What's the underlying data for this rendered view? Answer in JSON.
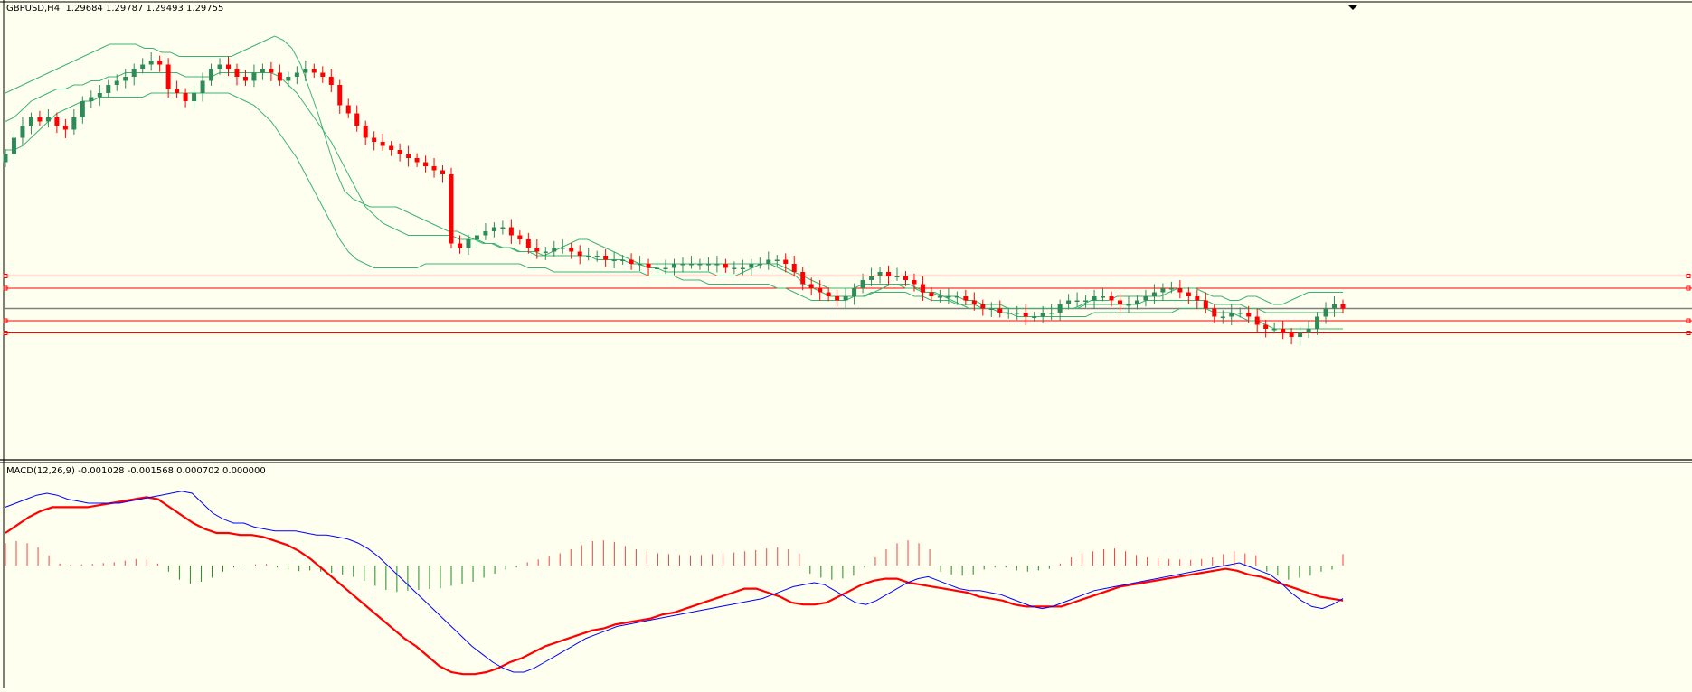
{
  "main": {
    "symbol": "GBPUSD,H4",
    "ohlc": "1.29684 1.29787 1.29493 1.29755"
  },
  "indicator": {
    "label": "MACD(12,26,9) -0.001028 -0.001568 0.000702 0.000000"
  },
  "colors": {
    "background": "#fffff0",
    "bull": "#2e8b57",
    "bear": "#ff0000",
    "band": "#3cb371",
    "hline": "#ff0000",
    "bidline": "#808080",
    "macd_line": "#0000ff",
    "signal_line": "#ff0000",
    "hist_pos": "#ff4040",
    "hist_neg": "#228b22"
  },
  "chart_data": [
    {
      "type": "candlestick",
      "symbol": "GBPUSD",
      "timeframe": "H4",
      "series": [
        {
          "name": "price",
          "values": [
            0.71,
            0.75,
            0.78,
            0.8,
            0.79,
            0.8,
            0.78,
            0.77,
            0.8,
            0.84,
            0.85,
            0.86,
            0.88,
            0.89,
            0.9,
            0.92,
            0.93,
            0.94,
            0.93,
            0.87,
            0.86,
            0.84,
            0.86,
            0.89,
            0.92,
            0.93,
            0.92,
            0.9,
            0.89,
            0.91,
            0.92,
            0.91,
            0.89,
            0.9,
            0.91,
            0.92,
            0.91,
            0.9,
            0.88,
            0.83,
            0.81,
            0.78,
            0.75,
            0.74,
            0.73,
            0.72,
            0.71,
            0.7,
            0.69,
            0.68,
            0.67,
            0.66,
            0.49,
            0.48,
            0.5,
            0.51,
            0.52,
            0.53,
            0.53,
            0.51,
            0.5,
            0.48,
            0.47,
            0.47,
            0.48,
            0.48,
            0.47,
            0.46,
            0.46,
            0.46,
            0.45,
            0.45,
            0.45,
            0.44,
            0.44,
            0.43,
            0.43,
            0.43,
            0.44,
            0.44,
            0.44,
            0.44,
            0.44,
            0.44,
            0.43,
            0.43,
            0.43,
            0.44,
            0.44,
            0.45,
            0.45,
            0.44,
            0.42,
            0.39,
            0.38,
            0.37,
            0.36,
            0.35,
            0.36,
            0.38,
            0.4,
            0.41,
            0.42,
            0.41,
            0.41,
            0.4,
            0.39,
            0.37,
            0.36,
            0.36,
            0.36,
            0.36,
            0.35,
            0.34,
            0.33,
            0.33,
            0.32,
            0.32,
            0.32,
            0.31,
            0.31,
            0.32,
            0.32,
            0.34,
            0.35,
            0.35,
            0.35,
            0.36,
            0.36,
            0.35,
            0.34,
            0.34,
            0.35,
            0.36,
            0.37,
            0.38,
            0.38,
            0.37,
            0.36,
            0.35,
            0.33,
            0.31,
            0.31,
            0.32,
            0.32,
            0.31,
            0.29,
            0.28,
            0.28,
            0.27,
            0.26,
            0.27,
            0.28,
            0.31,
            0.33,
            0.34,
            0.33
          ]
        },
        {
          "name": "bb_upper",
          "values": [
            0.86,
            0.87,
            0.88,
            0.89,
            0.9,
            0.91,
            0.92,
            0.93,
            0.94,
            0.95,
            0.96,
            0.97,
            0.98,
            0.98,
            0.98,
            0.98,
            0.97,
            0.97,
            0.96,
            0.96,
            0.95,
            0.95,
            0.95,
            0.95,
            0.95,
            0.95,
            0.95,
            0.96,
            0.97,
            0.98,
            0.99,
            1.0,
            0.99,
            0.97,
            0.93,
            0.87,
            0.81,
            0.74,
            0.67,
            0.62,
            0.6,
            0.59,
            0.58,
            0.58,
            0.58,
            0.58,
            0.57,
            0.56,
            0.55,
            0.54,
            0.53,
            0.52,
            0.52,
            0.51,
            0.5,
            0.49,
            0.49,
            0.48,
            0.48,
            0.47,
            0.47,
            0.47,
            0.46,
            0.47,
            0.48,
            0.49,
            0.5,
            0.5,
            0.49,
            0.48,
            0.47,
            0.46,
            0.45,
            0.44,
            0.43,
            0.43,
            0.42,
            0.42,
            0.42,
            0.42,
            0.42,
            0.42,
            0.41,
            0.41,
            0.41,
            0.42,
            0.43,
            0.44,
            0.44,
            0.43,
            0.42,
            0.41,
            0.39,
            0.38,
            0.37,
            0.36,
            0.36,
            0.36,
            0.36,
            0.36,
            0.37,
            0.38,
            0.39,
            0.39,
            0.39,
            0.38,
            0.37,
            0.37,
            0.36,
            0.35,
            0.34,
            0.33,
            0.33,
            0.33,
            0.33,
            0.33,
            0.33,
            0.33,
            0.33,
            0.33,
            0.33,
            0.33,
            0.33,
            0.33,
            0.34,
            0.35,
            0.35,
            0.35,
            0.36,
            0.36,
            0.36,
            0.36,
            0.36,
            0.36,
            0.37,
            0.38,
            0.38,
            0.38,
            0.37,
            0.36,
            0.36,
            0.35,
            0.35,
            0.36,
            0.36,
            0.35,
            0.34,
            0.34,
            0.35,
            0.36,
            0.37,
            0.37,
            0.37,
            0.37,
            0.37
          ]
        },
        {
          "name": "bb_middle",
          "values": [
            0.79,
            0.8,
            0.82,
            0.84,
            0.85,
            0.86,
            0.87,
            0.87,
            0.88,
            0.88,
            0.89,
            0.89,
            0.9,
            0.9,
            0.91,
            0.91,
            0.91,
            0.91,
            0.91,
            0.91,
            0.91,
            0.9,
            0.9,
            0.9,
            0.9,
            0.91,
            0.91,
            0.91,
            0.91,
            0.91,
            0.91,
            0.91,
            0.9,
            0.88,
            0.86,
            0.83,
            0.8,
            0.77,
            0.74,
            0.7,
            0.66,
            0.62,
            0.58,
            0.56,
            0.54,
            0.53,
            0.52,
            0.51,
            0.51,
            0.51,
            0.51,
            0.51,
            0.51,
            0.5,
            0.5,
            0.5,
            0.49,
            0.49,
            0.48,
            0.48,
            0.47,
            0.47,
            0.46,
            0.46,
            0.46,
            0.46,
            0.46,
            0.46,
            0.46,
            0.45,
            0.45,
            0.45,
            0.45,
            0.44,
            0.44,
            0.44,
            0.44,
            0.44,
            0.44,
            0.44,
            0.44,
            0.44,
            0.44,
            0.44,
            0.44,
            0.44,
            0.44,
            0.44,
            0.44,
            0.44,
            0.44,
            0.43,
            0.42,
            0.41,
            0.4,
            0.39,
            0.38,
            0.38,
            0.38,
            0.38,
            0.39,
            0.39,
            0.39,
            0.39,
            0.39,
            0.38,
            0.38,
            0.37,
            0.37,
            0.36,
            0.36,
            0.36,
            0.35,
            0.35,
            0.34,
            0.34,
            0.34,
            0.33,
            0.33,
            0.33,
            0.33,
            0.33,
            0.33,
            0.33,
            0.33,
            0.33,
            0.34,
            0.34,
            0.34,
            0.34,
            0.34,
            0.34,
            0.34,
            0.35,
            0.35,
            0.35,
            0.35,
            0.35,
            0.35,
            0.35,
            0.35,
            0.34,
            0.34,
            0.34,
            0.34,
            0.33,
            0.33,
            0.32,
            0.32,
            0.32,
            0.32,
            0.32,
            0.32,
            0.32,
            0.32,
            0.32,
            0.32
          ]
        },
        {
          "name": "bb_lower",
          "values": [
            0.72,
            0.72,
            0.73,
            0.75,
            0.77,
            0.79,
            0.81,
            0.82,
            0.83,
            0.84,
            0.84,
            0.85,
            0.85,
            0.85,
            0.85,
            0.85,
            0.85,
            0.86,
            0.86,
            0.86,
            0.86,
            0.86,
            0.86,
            0.86,
            0.86,
            0.86,
            0.86,
            0.85,
            0.84,
            0.83,
            0.81,
            0.79,
            0.76,
            0.73,
            0.7,
            0.66,
            0.62,
            0.58,
            0.54,
            0.5,
            0.47,
            0.45,
            0.44,
            0.43,
            0.43,
            0.43,
            0.43,
            0.43,
            0.43,
            0.44,
            0.44,
            0.44,
            0.44,
            0.44,
            0.44,
            0.44,
            0.44,
            0.44,
            0.44,
            0.44,
            0.44,
            0.43,
            0.43,
            0.43,
            0.42,
            0.42,
            0.42,
            0.42,
            0.42,
            0.42,
            0.42,
            0.42,
            0.42,
            0.42,
            0.42,
            0.41,
            0.41,
            0.41,
            0.41,
            0.4,
            0.4,
            0.4,
            0.39,
            0.39,
            0.39,
            0.39,
            0.39,
            0.39,
            0.39,
            0.39,
            0.38,
            0.38,
            0.37,
            0.36,
            0.35,
            0.35,
            0.35,
            0.35,
            0.35,
            0.36,
            0.36,
            0.37,
            0.37,
            0.37,
            0.37,
            0.37,
            0.36,
            0.36,
            0.35,
            0.35,
            0.35,
            0.34,
            0.34,
            0.34,
            0.33,
            0.33,
            0.32,
            0.32,
            0.31,
            0.31,
            0.31,
            0.31,
            0.31,
            0.31,
            0.31,
            0.31,
            0.31,
            0.32,
            0.32,
            0.32,
            0.32,
            0.32,
            0.32,
            0.32,
            0.32,
            0.32,
            0.32,
            0.33,
            0.33,
            0.33,
            0.33,
            0.32,
            0.32,
            0.32,
            0.31,
            0.3,
            0.3,
            0.29,
            0.28,
            0.28,
            0.28,
            0.28,
            0.28,
            0.28,
            0.28,
            0.28,
            0.28
          ]
        },
        {
          "name": "horizontal_lines",
          "values": [
            0.41,
            0.38,
            0.3,
            0.27
          ]
        },
        {
          "name": "bid_line",
          "values": [
            0.33
          ]
        }
      ]
    },
    {
      "type": "line",
      "indicator": "MACD",
      "series": [
        {
          "name": "macd",
          "values": [
            0.88,
            0.9,
            0.92,
            0.94,
            0.95,
            0.94,
            0.92,
            0.91,
            0.9,
            0.9,
            0.9,
            0.9,
            0.91,
            0.92,
            0.93,
            0.94,
            0.95,
            0.96,
            0.95,
            0.9,
            0.85,
            0.82,
            0.8,
            0.8,
            0.78,
            0.77,
            0.76,
            0.76,
            0.76,
            0.75,
            0.74,
            0.74,
            0.73,
            0.72,
            0.7,
            0.67,
            0.63,
            0.58,
            0.53,
            0.48,
            0.43,
            0.38,
            0.33,
            0.28,
            0.23,
            0.18,
            0.14,
            0.1,
            0.07,
            0.05,
            0.05,
            0.07,
            0.1,
            0.13,
            0.16,
            0.19,
            0.22,
            0.24,
            0.26,
            0.28,
            0.29,
            0.3,
            0.31,
            0.32,
            0.33,
            0.34,
            0.35,
            0.36,
            0.37,
            0.38,
            0.39,
            0.4,
            0.41,
            0.42,
            0.44,
            0.46,
            0.48,
            0.49,
            0.5,
            0.49,
            0.46,
            0.43,
            0.4,
            0.39,
            0.41,
            0.44,
            0.47,
            0.5,
            0.52,
            0.53,
            0.51,
            0.49,
            0.47,
            0.46,
            0.46,
            0.45,
            0.44,
            0.42,
            0.4,
            0.38,
            0.37,
            0.38,
            0.4,
            0.42,
            0.44,
            0.46,
            0.47,
            0.48,
            0.49,
            0.5,
            0.51,
            0.52,
            0.53,
            0.54,
            0.55,
            0.56,
            0.57,
            0.58,
            0.59,
            0.6,
            0.58,
            0.56,
            0.54,
            0.5,
            0.45,
            0.41,
            0.38,
            0.37,
            0.39,
            0.42
          ]
        },
        {
          "name": "signal",
          "values": [
            0.75,
            0.79,
            0.83,
            0.86,
            0.88,
            0.88,
            0.88,
            0.88,
            0.89,
            0.9,
            0.91,
            0.92,
            0.93,
            0.92,
            0.88,
            0.84,
            0.8,
            0.77,
            0.75,
            0.75,
            0.74,
            0.74,
            0.73,
            0.71,
            0.69,
            0.66,
            0.62,
            0.57,
            0.52,
            0.47,
            0.42,
            0.37,
            0.32,
            0.27,
            0.22,
            0.18,
            0.13,
            0.08,
            0.05,
            0.04,
            0.04,
            0.05,
            0.07,
            0.1,
            0.12,
            0.15,
            0.18,
            0.2,
            0.22,
            0.24,
            0.26,
            0.27,
            0.29,
            0.3,
            0.31,
            0.32,
            0.34,
            0.35,
            0.37,
            0.39,
            0.41,
            0.43,
            0.45,
            0.47,
            0.47,
            0.45,
            0.43,
            0.4,
            0.39,
            0.39,
            0.4,
            0.43,
            0.46,
            0.49,
            0.51,
            0.52,
            0.52,
            0.5,
            0.49,
            0.48,
            0.47,
            0.46,
            0.45,
            0.43,
            0.42,
            0.41,
            0.39,
            0.38,
            0.38,
            0.38,
            0.38,
            0.4,
            0.42,
            0.44,
            0.46,
            0.48,
            0.49,
            0.5,
            0.51,
            0.52,
            0.53,
            0.54,
            0.55,
            0.56,
            0.57,
            0.56,
            0.54,
            0.53,
            0.51,
            0.49,
            0.47,
            0.45,
            0.43,
            0.42,
            0.41
          ]
        },
        {
          "name": "histogram",
          "values": [
            0.55,
            0.6,
            0.55,
            0.45,
            0.25,
            0.05,
            0.02,
            0.03,
            0.04,
            0.06,
            0.08,
            0.12,
            0.16,
            0.15,
            0.05,
            -0.15,
            -0.35,
            -0.45,
            -0.4,
            -0.3,
            -0.15,
            -0.05,
            -0.02,
            0.03,
            0.04,
            -0.05,
            -0.1,
            -0.14,
            -0.12,
            -0.15,
            -0.18,
            -0.22,
            -0.28,
            -0.38,
            -0.5,
            -0.6,
            -0.65,
            -0.62,
            -0.6,
            -0.58,
            -0.56,
            -0.5,
            -0.45,
            -0.4,
            -0.3,
            -0.2,
            -0.1,
            -0.05,
            0.08,
            0.15,
            0.22,
            0.3,
            0.4,
            0.5,
            0.6,
            0.62,
            0.58,
            0.48,
            0.4,
            0.35,
            0.3,
            0.28,
            0.26,
            0.25,
            0.26,
            0.28,
            0.3,
            0.32,
            0.35,
            0.38,
            0.42,
            0.45,
            0.4,
            0.3,
            -0.2,
            -0.3,
            -0.35,
            -0.32,
            -0.25,
            -0.05,
            0.2,
            0.4,
            0.55,
            0.62,
            0.55,
            0.4,
            -0.15,
            -0.22,
            -0.25,
            -0.22,
            -0.1,
            -0.05,
            -0.05,
            -0.12,
            -0.15,
            -0.12,
            -0.08,
            0.05,
            0.2,
            0.3,
            0.35,
            0.4,
            0.42,
            0.35,
            0.26,
            0.2,
            0.18,
            0.16,
            0.15,
            0.14,
            0.16,
            0.2,
            0.28,
            0.35,
            0.3,
            0.25,
            -0.15,
            -0.25,
            -0.35,
            -0.3,
            -0.25,
            -0.15,
            -0.1,
            0.28
          ]
        }
      ]
    }
  ]
}
